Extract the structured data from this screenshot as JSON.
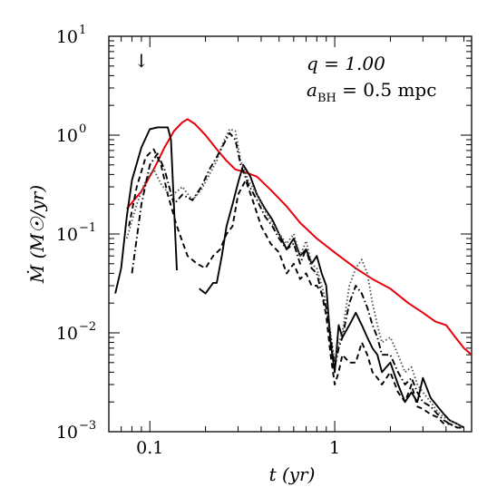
{
  "chart_data": {
    "type": "line",
    "xscale": "log",
    "yscale": "log",
    "xlim": [
      0.06,
      5.5
    ],
    "ylim": [
      0.001,
      10
    ],
    "xlabel": "t   (yr)",
    "ylabel": "Ṁ   (M☉/yr)",
    "x_tick_labels": [
      "0.1",
      "1"
    ],
    "y_tick_labels": [
      {
        "base": "10",
        "exp": "−3"
      },
      {
        "base": "10",
        "exp": "−2"
      },
      {
        "base": "10",
        "exp": "−1"
      },
      {
        "base": "10",
        "exp": "0"
      },
      {
        "base": "10",
        "exp": "1"
      }
    ],
    "annotations": {
      "q_text": "q = 1.00",
      "a_prefix": "a",
      "a_sub": "BH",
      "a_value": " = 0.5 mpc",
      "arrow_x": 0.09,
      "arrow_glyph": "↓"
    },
    "series": [
      {
        "style": "solid-red",
        "color": "#e8000b",
        "x": [
          0.075,
          0.09,
          0.105,
          0.12,
          0.135,
          0.15,
          0.16,
          0.175,
          0.2,
          0.23,
          0.26,
          0.29,
          0.33,
          0.38,
          0.45,
          0.55,
          0.65,
          0.8,
          1.0,
          1.3,
          1.6,
          2.0,
          2.5,
          3.0,
          3.5,
          4.0,
          4.5,
          5.0,
          5.5
        ],
        "y": [
          0.18,
          0.27,
          0.45,
          0.75,
          1.1,
          1.35,
          1.45,
          1.3,
          1.0,
          0.72,
          0.55,
          0.45,
          0.42,
          0.38,
          0.28,
          0.19,
          0.13,
          0.09,
          0.065,
          0.045,
          0.035,
          0.028,
          0.02,
          0.016,
          0.013,
          0.012,
          0.009,
          0.007,
          0.006
        ]
      },
      {
        "style": "solid-black",
        "color": "#000000",
        "x": [
          0.065,
          0.07,
          0.075,
          0.08,
          0.09,
          0.1,
          0.11,
          0.125,
          0.13,
          0.14
        ],
        "y": [
          0.025,
          0.045,
          0.15,
          0.35,
          0.75,
          1.15,
          1.2,
          1.2,
          0.9,
          0.043
        ]
      },
      {
        "style": "solid-black",
        "color": "#000000",
        "x": [
          0.185,
          0.2,
          0.22,
          0.23,
          0.245,
          0.26,
          0.28,
          0.3,
          0.32,
          0.35,
          0.38,
          0.42,
          0.46,
          0.5,
          0.55,
          0.6,
          0.65,
          0.7,
          0.75,
          0.8,
          0.85,
          0.9,
          0.95,
          1.0,
          1.05,
          1.1,
          1.2,
          1.3,
          1.4,
          1.5,
          1.6,
          1.7,
          1.8,
          2.0,
          2.2,
          2.4,
          2.6,
          2.8,
          3.0,
          3.3,
          3.6,
          3.9,
          4.2,
          4.6,
          5.0
        ],
        "y": [
          0.028,
          0.025,
          0.032,
          0.032,
          0.06,
          0.12,
          0.2,
          0.33,
          0.5,
          0.38,
          0.25,
          0.18,
          0.14,
          0.1,
          0.07,
          0.09,
          0.06,
          0.07,
          0.05,
          0.06,
          0.04,
          0.03,
          0.008,
          0.004,
          0.012,
          0.009,
          0.012,
          0.016,
          0.012,
          0.009,
          0.007,
          0.006,
          0.004,
          0.005,
          0.003,
          0.002,
          0.0025,
          0.002,
          0.0035,
          0.0022,
          0.0018,
          0.0015,
          0.0013,
          0.0012,
          0.0011
        ]
      },
      {
        "style": "dashed-black",
        "color": "#000000",
        "x": [
          0.077,
          0.085,
          0.095,
          0.105,
          0.115,
          0.125,
          0.14,
          0.16,
          0.18,
          0.2,
          0.22,
          0.24,
          0.26,
          0.28,
          0.3,
          0.33,
          0.36,
          0.4,
          0.45,
          0.5,
          0.55,
          0.6,
          0.65,
          0.7,
          0.75,
          0.8,
          0.85,
          0.9,
          0.95,
          1.0,
          1.05,
          1.1,
          1.2,
          1.3,
          1.4,
          1.5,
          1.6,
          1.7,
          1.8,
          2.0,
          2.2,
          2.4,
          2.6,
          2.8,
          3.0,
          3.3,
          3.6,
          3.9,
          4.2,
          4.6,
          5.0
        ],
        "y": [
          0.12,
          0.3,
          0.6,
          0.72,
          0.5,
          0.25,
          0.12,
          0.06,
          0.05,
          0.045,
          0.06,
          0.07,
          0.1,
          0.12,
          0.25,
          0.35,
          0.22,
          0.12,
          0.08,
          0.065,
          0.04,
          0.05,
          0.035,
          0.04,
          0.03,
          0.03,
          0.025,
          0.015,
          0.006,
          0.003,
          0.004,
          0.006,
          0.005,
          0.005,
          0.008,
          0.006,
          0.004,
          0.0035,
          0.003,
          0.004,
          0.0025,
          0.002,
          0.003,
          0.0018,
          0.0017,
          0.0015,
          0.0014,
          0.0012,
          0.0012,
          0.0011,
          0.0011
        ]
      },
      {
        "style": "dotted-black",
        "color": "#555555",
        "x": [
          0.075,
          0.085,
          0.095,
          0.105,
          0.115,
          0.13,
          0.15,
          0.17,
          0.19,
          0.21,
          0.23,
          0.25,
          0.27,
          0.29,
          0.31,
          0.34,
          0.38,
          0.42,
          0.46,
          0.5,
          0.55,
          0.6,
          0.65,
          0.7,
          0.75,
          0.8,
          0.85,
          0.9,
          0.95,
          1.0,
          1.05,
          1.1,
          1.2,
          1.3,
          1.4,
          1.5,
          1.6,
          1.7,
          1.8,
          2.0,
          2.2,
          2.4,
          2.6,
          2.8,
          3.0,
          3.3,
          3.6,
          3.9,
          4.2,
          4.6,
          5.0
        ],
        "y": [
          0.09,
          0.2,
          0.35,
          0.45,
          0.32,
          0.24,
          0.3,
          0.22,
          0.28,
          0.4,
          0.55,
          0.85,
          1.15,
          1.1,
          0.55,
          0.35,
          0.25,
          0.17,
          0.13,
          0.1,
          0.08,
          0.1,
          0.06,
          0.085,
          0.05,
          0.045,
          0.03,
          0.02,
          0.01,
          0.005,
          0.008,
          0.01,
          0.03,
          0.045,
          0.055,
          0.04,
          0.02,
          0.012,
          0.008,
          0.009,
          0.006,
          0.004,
          0.0045,
          0.003,
          0.0025,
          0.002,
          0.0016,
          0.0014,
          0.0013,
          0.0012,
          0.0011
        ]
      },
      {
        "style": "dashdot-black",
        "color": "#000000",
        "x": [
          0.08,
          0.09,
          0.1,
          0.11,
          0.12,
          0.135,
          0.15,
          0.17,
          0.19,
          0.21,
          0.23,
          0.25,
          0.27,
          0.29,
          0.31,
          0.34,
          0.38,
          0.42,
          0.46,
          0.5,
          0.55,
          0.6,
          0.65,
          0.7,
          0.75,
          0.8,
          0.85,
          0.9,
          0.95,
          1.0,
          1.05,
          1.1,
          1.2,
          1.3,
          1.4,
          1.5,
          1.6,
          1.7,
          1.8,
          2.0,
          2.2,
          2.4,
          2.6,
          2.8,
          3.0,
          3.3,
          3.6,
          3.9,
          4.2,
          4.6,
          5.0
        ],
        "y": [
          0.04,
          0.2,
          0.5,
          0.65,
          0.45,
          0.2,
          0.25,
          0.22,
          0.3,
          0.45,
          0.6,
          0.8,
          1.05,
          0.9,
          0.5,
          0.32,
          0.22,
          0.15,
          0.12,
          0.09,
          0.07,
          0.08,
          0.05,
          0.07,
          0.045,
          0.04,
          0.025,
          0.018,
          0.009,
          0.0045,
          0.007,
          0.009,
          0.02,
          0.03,
          0.025,
          0.018,
          0.012,
          0.009,
          0.006,
          0.006,
          0.004,
          0.003,
          0.0035,
          0.0025,
          0.002,
          0.0018,
          0.0015,
          0.0013,
          0.0012,
          0.0011,
          0.0011
        ]
      }
    ]
  }
}
